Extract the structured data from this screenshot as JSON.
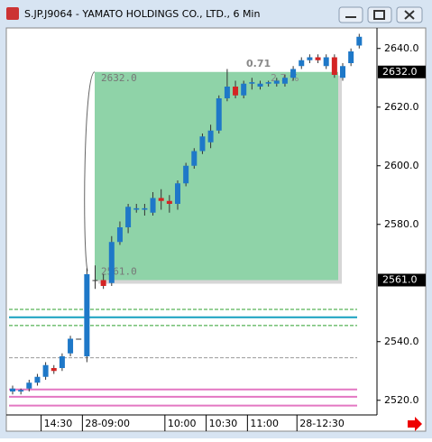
{
  "window": {
    "title": "S.JP.J9064 - YAMATO HOLDINGS CO., LTD., 6 Min"
  },
  "chart_data": {
    "type": "candlestick",
    "categories": [
      null,
      null,
      null,
      null,
      "14:30",
      null,
      null,
      null,
      null,
      "28-09:00",
      null,
      null,
      null,
      null,
      null,
      null,
      null,
      null,
      null,
      "10:00",
      null,
      null,
      null,
      null,
      "10:30",
      null,
      null,
      null,
      null,
      "11:00",
      null,
      null,
      null,
      null,
      null,
      "28-12:30",
      null,
      null,
      null,
      null,
      null,
      null,
      null
    ],
    "open": [
      2523,
      2523,
      2524,
      2526,
      2528,
      2531,
      2531,
      2536,
      2541,
      2535,
      2561,
      2561,
      2560,
      2574,
      2579,
      2585,
      2585,
      2584,
      2589,
      2588,
      2587,
      2594,
      2600,
      2605,
      2608,
      2612,
      2623,
      2627,
      2624,
      2628,
      2627,
      2628,
      2628,
      2628,
      2630,
      2634,
      2636,
      2637,
      2634,
      2637,
      2630,
      2635,
      2641
    ],
    "high": [
      2525,
      2524,
      2527,
      2529,
      2533,
      2532,
      2536,
      2542,
      2541,
      2565,
      2566,
      2563,
      2576,
      2581,
      2587,
      2587,
      2587,
      2591,
      2592,
      2590,
      2595,
      2601,
      2606,
      2611,
      2614,
      2624,
      2633,
      2629,
      2629,
      2630,
      2629,
      2629,
      2630,
      2631,
      2634,
      2637,
      2638,
      2638,
      2638,
      2638,
      2635,
      2640,
      2645
    ],
    "low": [
      2522,
      2522,
      2523,
      2525,
      2527,
      2529,
      2530,
      2535,
      2541,
      2533,
      2558,
      2558,
      2559,
      2573,
      2577,
      2584,
      2583,
      2583,
      2585,
      2584,
      2585,
      2593,
      2599,
      2604,
      2606,
      2611,
      2622,
      2623,
      2623,
      2626,
      2626,
      2627,
      2627,
      2627,
      2629,
      2633,
      2635,
      2635,
      2633,
      2630,
      2629,
      2634,
      2640
    ],
    "close": [
      2524,
      2523.5,
      2526,
      2528,
      2532,
      2530,
      2535,
      2541,
      2541,
      2563,
      2561,
      2559,
      2574,
      2579,
      2586,
      2585.5,
      2585.5,
      2589,
      2588,
      2587,
      2594,
      2600,
      2605,
      2610,
      2612,
      2623,
      2627,
      2624,
      2628,
      2628.5,
      2628,
      2628.5,
      2629,
      2630,
      2633,
      2636,
      2637,
      2636,
      2637,
      2631,
      2634,
      2639,
      2644
    ],
    "up_color": "#1e78c8",
    "down_color": "#d42424",
    "flat_color": "#333333",
    "ylim": [
      2515,
      2647
    ],
    "yticks": [
      {
        "value": 2520,
        "label": "2520.0"
      },
      {
        "value": 2540,
        "label": "2540.0"
      },
      {
        "value": 2580,
        "label": "2580.0"
      },
      {
        "value": 2600,
        "label": "2600.0"
      },
      {
        "value": 2620,
        "label": "2620.0"
      },
      {
        "value": 2640,
        "label": "2640.0"
      }
    ],
    "price_markers": [
      {
        "value": 2632,
        "label": "2632.0"
      },
      {
        "value": 2561,
        "label": "2561.0"
      }
    ],
    "range_box": {
      "change": "0.71",
      "percent": "2.7 %",
      "color": "#8fd3a8"
    },
    "reference_lines": [
      {
        "value": 2551,
        "color": "#2ca02c",
        "dash": true
      },
      {
        "value": 2548.3,
        "color": "#17a0c0",
        "dash": false
      },
      {
        "value": 2545.5,
        "color": "#2ca02c",
        "dash": true
      },
      {
        "value": 2534.5,
        "color": "#999999",
        "dash": true
      },
      {
        "value": 2523.7,
        "color": "#e377c2",
        "dash": false
      },
      {
        "value": 2521.2,
        "color": "#e377c2",
        "dash": false
      },
      {
        "value": 2518.2,
        "color": "#e377c2",
        "dash": false
      }
    ]
  }
}
